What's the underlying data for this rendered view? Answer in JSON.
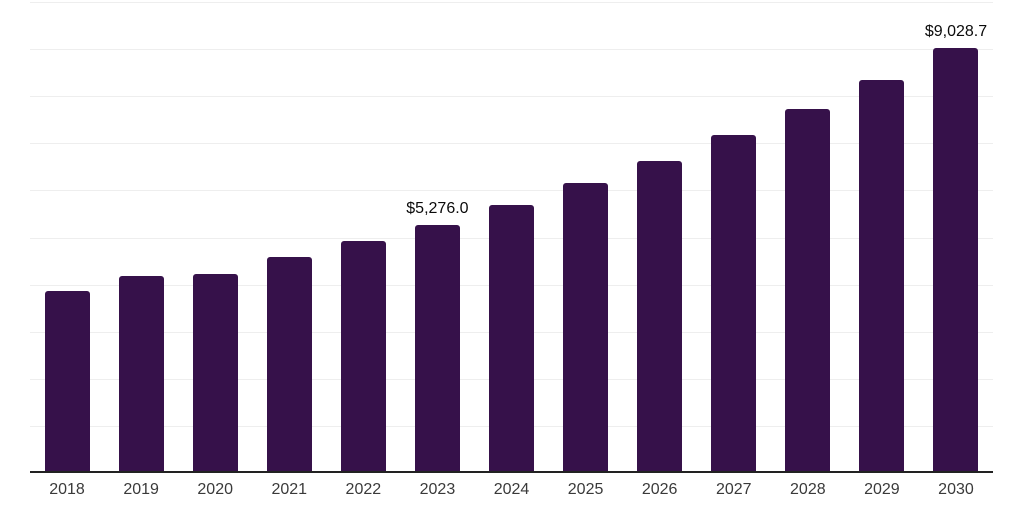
{
  "chart_data": {
    "type": "bar",
    "title": "",
    "xlabel": "",
    "ylabel": "",
    "categories": [
      "2018",
      "2019",
      "2020",
      "2021",
      "2022",
      "2023",
      "2024",
      "2025",
      "2026",
      "2027",
      "2028",
      "2029",
      "2030"
    ],
    "values": [
      3860,
      4180,
      4235,
      4590,
      4925,
      5276.0,
      5700,
      6150,
      6630,
      7170,
      7725,
      8345,
      9028.7
    ],
    "data_labels": [
      "",
      "",
      "",
      "",
      "",
      "$5,276.0",
      "",
      "",
      "",
      "",
      "",
      "",
      "$9,028.7"
    ],
    "ylim": [
      0,
      10000
    ],
    "gridline_step": 1000,
    "grid": "horizontal-only",
    "legend": "none",
    "bar_color": "#36114A",
    "grid_color": "#eeeeee",
    "axis_line_color": "#222222",
    "tick_label_color": "#3a3a3a",
    "data_label_color": "#0b0b0b",
    "background_color": "#ffffff"
  }
}
